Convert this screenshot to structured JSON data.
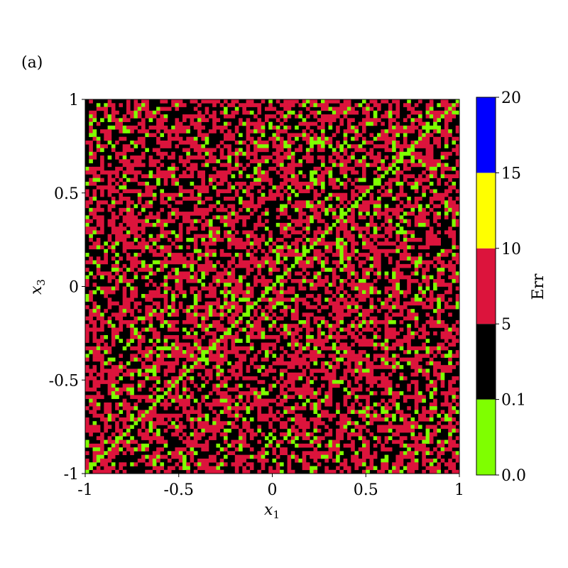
{
  "panel_label": "(a)",
  "chart_data": {
    "type": "heatmap",
    "xlabel": "x",
    "xlabel_sub": "1",
    "ylabel": "x",
    "ylabel_sub": "3",
    "xlim": [
      -1,
      1
    ],
    "ylim": [
      -1,
      1
    ],
    "x_ticks": [
      -1,
      -0.5,
      0,
      0.5,
      1
    ],
    "x_tick_labels": [
      "-1",
      "-0.5",
      "0",
      "0.5",
      "1"
    ],
    "y_ticks": [
      -1,
      -0.5,
      0,
      0.5,
      1
    ],
    "y_tick_labels": [
      "-1",
      "-0.5",
      "0",
      "0.5",
      "1"
    ],
    "grid_resolution": 100,
    "diagonal_error_class": "0.0-0.1",
    "colorbar": {
      "label": "Err",
      "boundaries": [
        0.0,
        0.1,
        5,
        10,
        15,
        20
      ],
      "tick_labels": [
        "0.0",
        "0.1",
        "5",
        "10",
        "15",
        "20"
      ],
      "classes": [
        {
          "range": [
            0.0,
            0.1
          ],
          "color": "#7fff00"
        },
        {
          "range": [
            0.1,
            5
          ],
          "color": "#000000"
        },
        {
          "range": [
            5,
            10
          ],
          "color": "#dc143c"
        },
        {
          "range": [
            10,
            15
          ],
          "color": "#ffff00"
        },
        {
          "range": [
            15,
            20
          ],
          "color": "#0000ff"
        }
      ]
    },
    "class_fractions_offdiagonal": {
      "0.0-0.1": 0.1,
      "0.1-5": 0.45,
      "5-10": 0.45,
      "10-15": 0.0,
      "15-20": 0.0
    }
  }
}
